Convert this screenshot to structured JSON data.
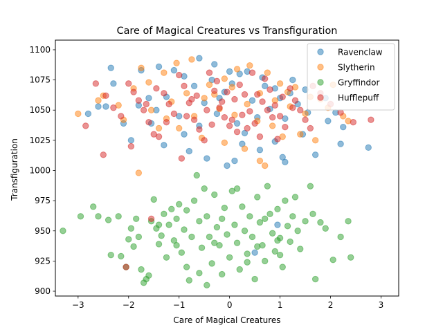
{
  "chart_data": {
    "type": "scatter",
    "title": "Care of Magical Creatures vs Transfiguration",
    "xlabel": "Care of Magical Creatures",
    "ylabel": "Transfiguration",
    "xlim": [
      -3.45,
      3.35
    ],
    "ylim": [
      896,
      1108
    ],
    "xticks": [
      -3,
      -2,
      -1,
      0,
      1,
      2,
      3
    ],
    "xtick_labels": [
      "−3",
      "−2",
      "−1",
      "0",
      "1",
      "2",
      "3"
    ],
    "yticks": [
      900,
      925,
      950,
      975,
      1000,
      1025,
      1050,
      1075,
      1100
    ],
    "ytick_labels": [
      "900",
      "925",
      "950",
      "975",
      "1000",
      "1025",
      "1050",
      "1075",
      "1100"
    ],
    "legend_position": "top-right",
    "series": [
      {
        "name": "Ravenclaw",
        "color": "#1f77b4",
        "points": [
          [
            -2.35,
            1085
          ],
          [
            -2.3,
            1072
          ],
          [
            -2.6,
            1053
          ],
          [
            -1.75,
            1083
          ],
          [
            -1.4,
            1086
          ],
          [
            -1.1,
            1083
          ],
          [
            -0.9,
            1078
          ],
          [
            -0.6,
            1093
          ],
          [
            -0.3,
            1088
          ],
          [
            0.0,
            1082
          ],
          [
            0.2,
            1080
          ],
          [
            0.35,
            1082
          ],
          [
            0.7,
            1070
          ],
          [
            0.9,
            1068
          ],
          [
            1.2,
            1064
          ],
          [
            1.5,
            1067
          ],
          [
            1.9,
            1060
          ],
          [
            2.1,
            1048
          ],
          [
            2.2,
            1022
          ],
          [
            2.75,
            1019
          ],
          [
            2.25,
            1036
          ],
          [
            1.45,
            1030
          ],
          [
            1.1,
            1007
          ],
          [
            1.05,
            1011
          ],
          [
            0.6,
            1017
          ],
          [
            0.1,
            1008
          ],
          [
            -0.05,
            1004
          ],
          [
            -0.45,
            1010
          ],
          [
            -0.8,
            1016
          ],
          [
            -1.3,
            1021
          ],
          [
            -1.95,
            1025
          ],
          [
            -2.1,
            1039
          ],
          [
            -2.8,
            1047
          ],
          [
            -2.45,
            1053
          ],
          [
            -1.55,
            1039
          ],
          [
            -1.0,
            1045
          ],
          [
            -0.5,
            1056
          ],
          [
            -0.1,
            1065
          ],
          [
            0.45,
            1058
          ],
          [
            0.8,
            1051
          ],
          [
            1.1,
            1043
          ],
          [
            1.35,
            1055
          ],
          [
            1.7,
            1013
          ],
          [
            0.9,
            1024
          ],
          [
            0.3,
            1031
          ],
          [
            -0.2,
            1060
          ],
          [
            -0.7,
            1070
          ],
          [
            -1.25,
            1061
          ],
          [
            -1.8,
            1054
          ],
          [
            -0.25,
            1047
          ],
          [
            0.15,
            1039
          ],
          [
            0.55,
            1044
          ],
          [
            1.0,
            1060
          ],
          [
            1.55,
            1048
          ],
          [
            1.95,
            1041
          ],
          [
            -1.6,
            1060
          ],
          [
            -0.9,
            1030
          ],
          [
            0.05,
            1072
          ],
          [
            0.65,
            1077
          ],
          [
            -0.35,
            1075
          ],
          [
            1.25,
            1075
          ],
          [
            0.95,
            955
          ],
          [
            0.5,
            932
          ],
          [
            0.25,
            1022
          ],
          [
            -0.6,
            1037
          ],
          [
            -1.45,
            1050
          ]
        ]
      },
      {
        "name": "Slytherin",
        "color": "#ff7f0e",
        "points": [
          [
            -3.0,
            1047
          ],
          [
            -2.5,
            1062
          ],
          [
            -2.1,
            1042
          ],
          [
            -1.75,
            1085
          ],
          [
            -1.3,
            1081
          ],
          [
            -1.05,
            1089
          ],
          [
            -0.75,
            1092
          ],
          [
            -0.4,
            1071
          ],
          [
            -0.1,
            1076
          ],
          [
            0.15,
            1084
          ],
          [
            0.4,
            1087
          ],
          [
            0.75,
            1081
          ],
          [
            1.0,
            1072
          ],
          [
            1.3,
            1069
          ],
          [
            1.6,
            1061
          ],
          [
            1.95,
            1052
          ],
          [
            2.25,
            1045
          ],
          [
            2.35,
            1041
          ],
          [
            1.7,
            1025
          ],
          [
            1.4,
            1030
          ],
          [
            1.05,
            1028
          ],
          [
            0.7,
            1004
          ],
          [
            0.6,
            1008
          ],
          [
            0.3,
            1018
          ],
          [
            -0.1,
            1023
          ],
          [
            -0.55,
            1027
          ],
          [
            -1.0,
            1035
          ],
          [
            -1.4,
            1035
          ],
          [
            -1.8,
            998
          ],
          [
            -2.2,
            1054
          ],
          [
            -2.6,
            1058
          ],
          [
            -1.55,
            1050
          ],
          [
            -1.15,
            1057
          ],
          [
            -0.85,
            1064
          ],
          [
            -0.5,
            1060
          ],
          [
            -0.2,
            1051
          ],
          [
            0.1,
            1046
          ],
          [
            0.35,
            1055
          ],
          [
            0.6,
            1064
          ],
          [
            0.9,
            1058
          ],
          [
            1.2,
            1053
          ],
          [
            1.5,
            1047
          ],
          [
            1.8,
            1059
          ],
          [
            2.05,
            1071
          ],
          [
            -1.9,
            1068
          ],
          [
            -1.6,
            1073
          ],
          [
            -0.3,
            1063
          ],
          [
            0.55,
            1041
          ],
          [
            0.85,
            1037
          ],
          [
            -0.7,
            1045
          ],
          [
            -1.25,
            1043
          ],
          [
            0.05,
            1069
          ],
          [
            1.15,
            1065
          ]
        ]
      },
      {
        "name": "Gryffindor",
        "color": "#2ca02c",
        "points": [
          [
            -3.3,
            950
          ],
          [
            -2.95,
            962
          ],
          [
            -2.7,
            970
          ],
          [
            -2.6,
            962
          ],
          [
            -2.4,
            959
          ],
          [
            -2.35,
            930
          ],
          [
            -2.2,
            962
          ],
          [
            -2.15,
            929
          ],
          [
            -2.0,
            943
          ],
          [
            -1.95,
            952
          ],
          [
            -1.9,
            937
          ],
          [
            -1.85,
            960
          ],
          [
            -1.8,
            945
          ],
          [
            -1.75,
            918
          ],
          [
            -1.7,
            907
          ],
          [
            -1.65,
            910
          ],
          [
            -1.6,
            913
          ],
          [
            -1.55,
            958
          ],
          [
            -1.5,
            976
          ],
          [
            -1.45,
            952
          ],
          [
            -1.4,
            939
          ],
          [
            -1.35,
            946
          ],
          [
            -1.3,
            964
          ],
          [
            -1.25,
            928
          ],
          [
            -1.2,
            955
          ],
          [
            -1.15,
            968
          ],
          [
            -1.1,
            942
          ],
          [
            -1.05,
            960
          ],
          [
            -1.0,
            972
          ],
          [
            -0.95,
            932
          ],
          [
            -0.9,
            951
          ],
          [
            -0.85,
            920
          ],
          [
            -0.8,
            909
          ],
          [
            -0.75,
            945
          ],
          [
            -0.7,
            975
          ],
          [
            -0.65,
            996
          ],
          [
            -0.6,
            958
          ],
          [
            -0.55,
            936
          ],
          [
            -0.5,
            985
          ],
          [
            -0.45,
            962
          ],
          [
            -0.4,
            945
          ],
          [
            -0.35,
            923
          ],
          [
            -0.3,
            980
          ],
          [
            -0.25,
            953
          ],
          [
            -0.2,
            938
          ],
          [
            -0.15,
            914
          ],
          [
            -0.1,
            969
          ],
          [
            -0.05,
            947
          ],
          [
            0.0,
            928
          ],
          [
            0.05,
            983
          ],
          [
            0.1,
            955
          ],
          [
            0.15,
            940
          ],
          [
            0.2,
            918
          ],
          [
            0.25,
            970
          ],
          [
            0.3,
            950
          ],
          [
            0.35,
            931
          ],
          [
            0.4,
            962
          ],
          [
            0.45,
            945
          ],
          [
            0.5,
            910
          ],
          [
            0.55,
            978
          ],
          [
            0.6,
            957
          ],
          [
            0.65,
            938
          ],
          [
            0.7,
            925
          ],
          [
            0.75,
            987
          ],
          [
            0.8,
            964
          ],
          [
            0.85,
            948
          ],
          [
            0.9,
            933
          ],
          [
            0.95,
            968
          ],
          [
            1.0,
            944
          ],
          [
            1.05,
            920
          ],
          [
            1.1,
            975
          ],
          [
            1.15,
            954
          ],
          [
            1.2,
            941
          ],
          [
            1.25,
            962
          ],
          [
            1.3,
            978
          ],
          [
            1.35,
            950
          ],
          [
            1.4,
            935
          ],
          [
            1.5,
            958
          ],
          [
            1.6,
            987
          ],
          [
            1.7,
            910
          ],
          [
            1.8,
            957
          ],
          [
            1.9,
            952
          ],
          [
            2.2,
            945
          ],
          [
            2.35,
            958
          ],
          [
            2.4,
            928
          ],
          [
            2.05,
            926
          ],
          [
            1.65,
            964
          ],
          [
            -0.6,
            915
          ],
          [
            0.15,
            985
          ],
          [
            -1.05,
            938
          ],
          [
            0.7,
            960
          ],
          [
            -0.3,
            940
          ],
          [
            0.35,
            924
          ],
          [
            -1.4,
            955
          ],
          [
            1.0,
            930
          ],
          [
            -0.85,
            967
          ],
          [
            0.55,
            937
          ],
          [
            -0.15,
            960
          ],
          [
            0.95,
            942
          ],
          [
            -2.05,
            920
          ],
          [
            -0.45,
            905
          ]
        ]
      },
      {
        "name": "Hufflepuff",
        "color": "#d62728",
        "points": [
          [
            -2.65,
            1072
          ],
          [
            -2.45,
            1062
          ],
          [
            -2.3,
            1052
          ],
          [
            -2.15,
            1045
          ],
          [
            -2.0,
            1072
          ],
          [
            -1.9,
            1065
          ],
          [
            -1.8,
            1058
          ],
          [
            -1.7,
            1050
          ],
          [
            -1.6,
            1040
          ],
          [
            -1.5,
            1030
          ],
          [
            -1.4,
            1028
          ],
          [
            -1.3,
            1064
          ],
          [
            -1.2,
            1055
          ],
          [
            -1.1,
            1047
          ],
          [
            -1.0,
            1079
          ],
          [
            -0.9,
            1070
          ],
          [
            -0.8,
            1056
          ],
          [
            -0.7,
            1042
          ],
          [
            -0.6,
            1034
          ],
          [
            -0.5,
            1025
          ],
          [
            -0.4,
            1081
          ],
          [
            -0.3,
            1066
          ],
          [
            -0.2,
            1052
          ],
          [
            -0.1,
            1044
          ],
          [
            0.0,
            1037
          ],
          [
            0.1,
            1059
          ],
          [
            0.2,
            1071
          ],
          [
            0.3,
            1063
          ],
          [
            0.4,
            1049
          ],
          [
            0.5,
            1039
          ],
          [
            0.6,
            1028
          ],
          [
            0.7,
            1076
          ],
          [
            0.8,
            1067
          ],
          [
            0.9,
            1054
          ],
          [
            1.0,
            1045
          ],
          [
            1.1,
            1036
          ],
          [
            1.2,
            1068
          ],
          [
            1.3,
            1058
          ],
          [
            1.4,
            1050
          ],
          [
            1.5,
            1042
          ],
          [
            1.6,
            1035
          ],
          [
            1.8,
            1064
          ],
          [
            2.0,
            1055
          ],
          [
            2.2,
            1048
          ],
          [
            2.45,
            1040
          ],
          [
            2.8,
            1042
          ],
          [
            -2.85,
            1037
          ],
          [
            -2.5,
            1013
          ],
          [
            -1.95,
            1020
          ],
          [
            -1.55,
            960
          ],
          [
            -2.05,
            920
          ],
          [
            -0.95,
            1010
          ],
          [
            0.15,
            1032
          ],
          [
            0.95,
            1026
          ],
          [
            -0.25,
            1074
          ],
          [
            0.45,
            1081
          ],
          [
            -0.65,
            1062
          ],
          [
            0.25,
            1046
          ],
          [
            -1.25,
            1040
          ],
          [
            1.25,
            1052
          ],
          [
            0.65,
            1057
          ],
          [
            -0.05,
            1065
          ],
          [
            -0.45,
            1050
          ],
          [
            0.05,
            1042
          ],
          [
            0.55,
            1063
          ],
          [
            -0.15,
            1057
          ],
          [
            0.35,
            1035
          ],
          [
            -0.85,
            1045
          ],
          [
            1.05,
            1061
          ],
          [
            -1.45,
            1068
          ],
          [
            1.65,
            1070
          ],
          [
            0.85,
            1044
          ],
          [
            -0.35,
            1038
          ],
          [
            0.75,
            1050
          ],
          [
            -0.75,
            1059
          ],
          [
            -1.65,
            1055
          ]
        ]
      }
    ]
  }
}
